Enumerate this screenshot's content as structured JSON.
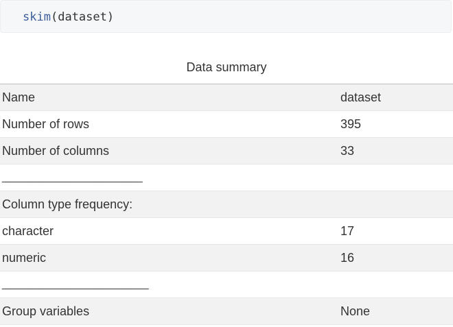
{
  "code": {
    "function": "skim",
    "open_paren": "(",
    "argument": "dataset",
    "close_paren": ")"
  },
  "table": {
    "caption": "Data summary",
    "header": {
      "label": "Name",
      "value": "dataset"
    },
    "rows": [
      {
        "label": "Number of rows",
        "value": "395"
      },
      {
        "label": "Number of columns",
        "value": "33"
      },
      {
        "label": "_______________________",
        "value": ""
      },
      {
        "label": "Column type frequency:",
        "value": ""
      },
      {
        "label": "character",
        "value": "17"
      },
      {
        "label": "numeric",
        "value": "16"
      },
      {
        "label": "________________________",
        "value": ""
      },
      {
        "label": "Group variables",
        "value": "None"
      }
    ]
  }
}
